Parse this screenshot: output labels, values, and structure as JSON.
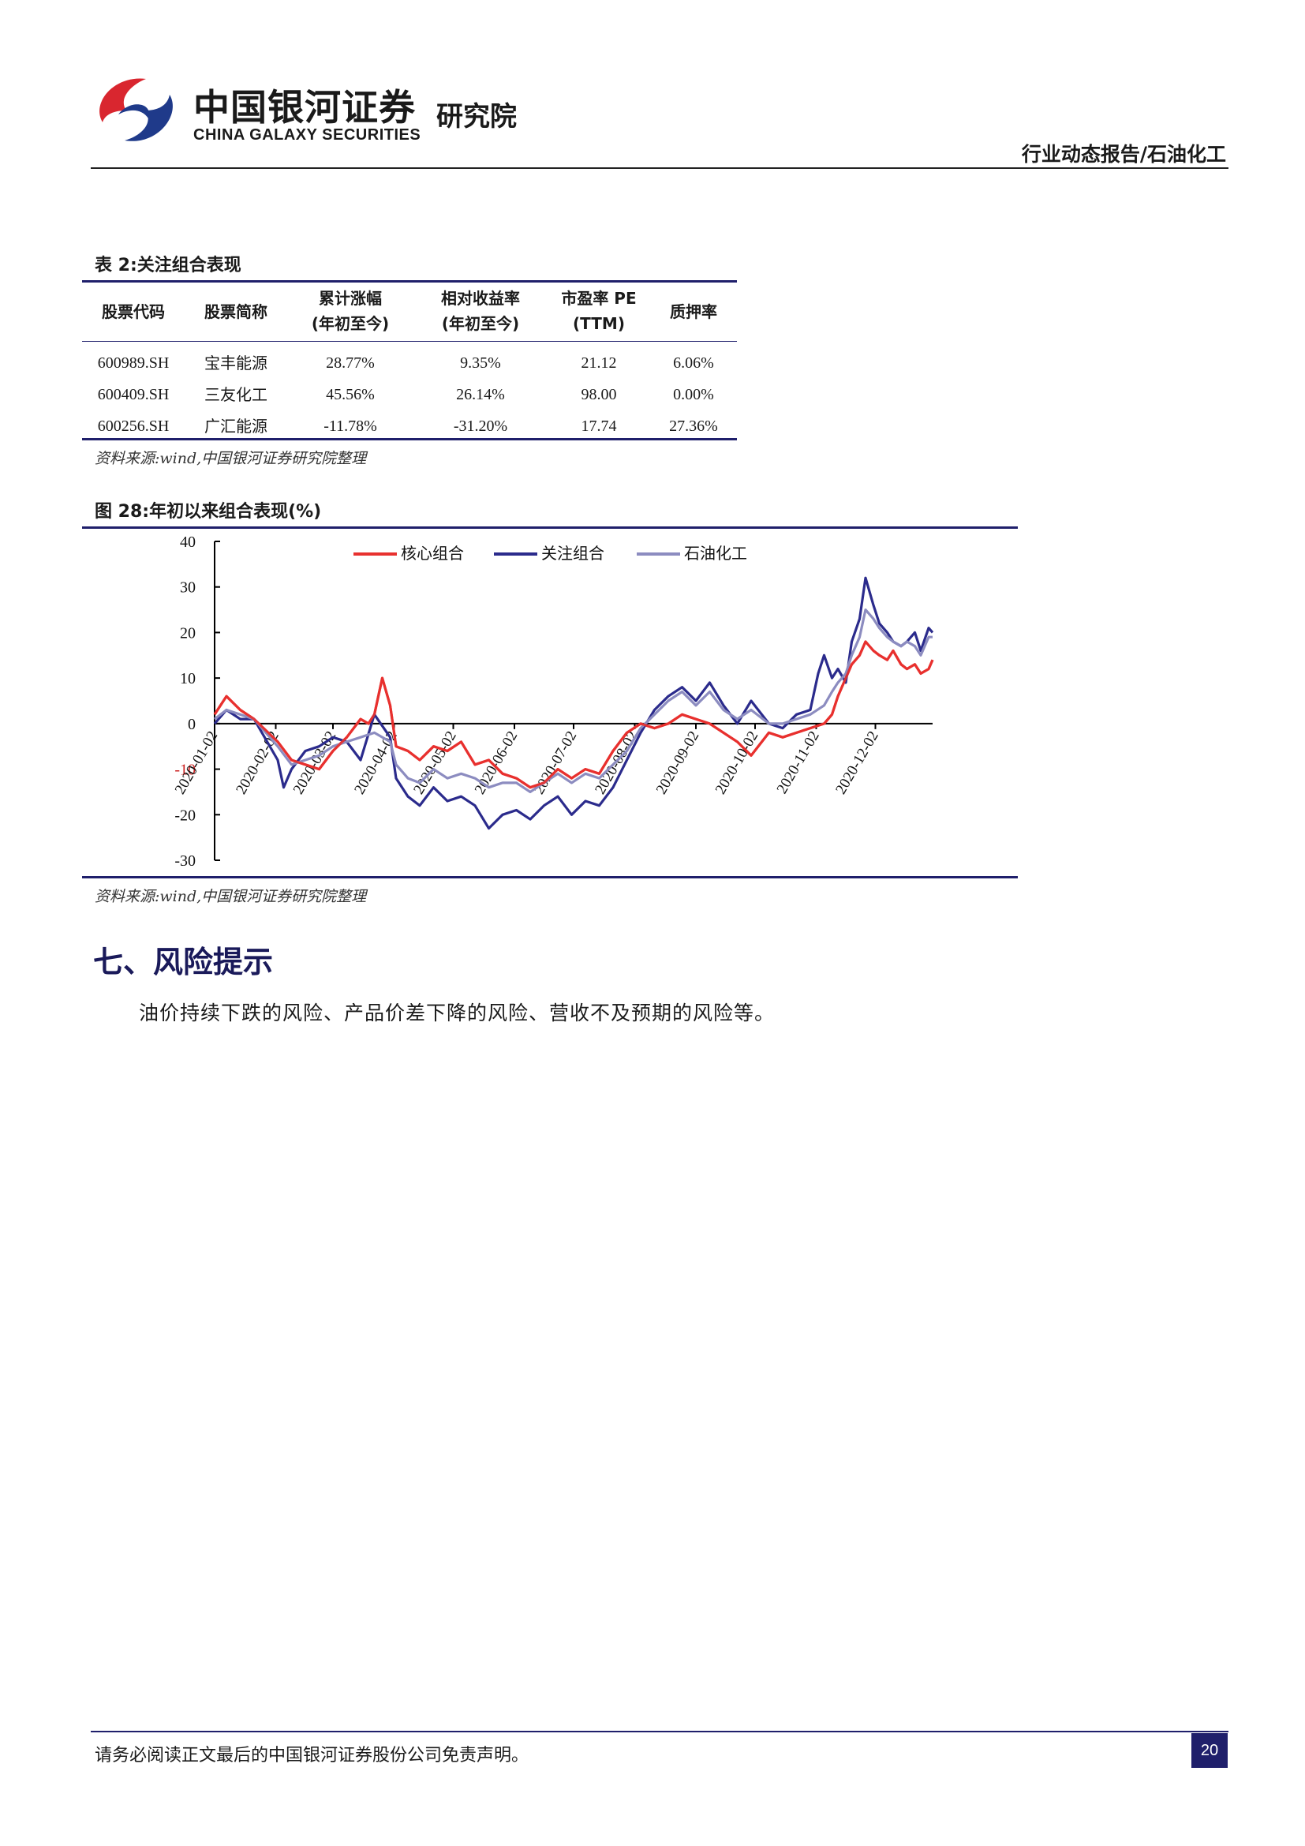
{
  "header": {
    "logo_cn": "中国银河证券",
    "logo_en": "CHINA GALAXY SECURITIES",
    "institute": "研究院",
    "report_type": "行业动态报告/石油化工",
    "brand_colors": {
      "red": "#d9262f",
      "navy": "#1f3a8a"
    }
  },
  "table2": {
    "caption": "表 2:关注组合表现",
    "columns": [
      {
        "line1": "股票代码",
        "line2": ""
      },
      {
        "line1": "股票简称",
        "line2": ""
      },
      {
        "line1": "累计涨幅",
        "line2": "(年初至今)"
      },
      {
        "line1": "相对收益率",
        "line2": "(年初至今)"
      },
      {
        "line1": "市盈率 PE",
        "line2": "(TTM)"
      },
      {
        "line1": "质押率",
        "line2": ""
      }
    ],
    "rows": [
      [
        "600989.SH",
        "宝丰能源",
        "28.77%",
        "9.35%",
        "21.12",
        "6.06%"
      ],
      [
        "600409.SH",
        "三友化工",
        "45.56%",
        "26.14%",
        "98.00",
        "0.00%"
      ],
      [
        "600256.SH",
        "广汇能源",
        "-11.78%",
        "-31.20%",
        "17.74",
        "27.36%"
      ]
    ],
    "source": "资料来源:wind,中国银河证券研究院整理"
  },
  "figure28": {
    "caption": "图 28:年初以来组合表现(%)",
    "source": "资料来源:wind,中国银河证券研究院整理"
  },
  "chart_data": {
    "type": "line",
    "title": "",
    "xlabel": "",
    "ylabel": "",
    "ylim": [
      -30,
      40
    ],
    "yticks": [
      40,
      30,
      20,
      10,
      0,
      -10,
      -20,
      -30
    ],
    "xlim": [
      "2020-01-02",
      "2020-12-31"
    ],
    "xtick_labels": [
      "2020-01-02",
      "2020-02-02",
      "2020-03-02",
      "2020-04-02",
      "2020-05-02",
      "2020-06-02",
      "2020-07-02",
      "2020-08-02",
      "2020-09-02",
      "2020-10-02",
      "2020-11-02",
      "2020-12-02"
    ],
    "grid": false,
    "legend": "top-center",
    "series": [
      {
        "name": "核心组合",
        "color": "#e8312f",
        "points": [
          [
            "2020-01-02",
            2
          ],
          [
            "2020-01-08",
            6
          ],
          [
            "2020-01-15",
            3
          ],
          [
            "2020-01-22",
            1
          ],
          [
            "2020-02-03",
            -4
          ],
          [
            "2020-02-10",
            -8
          ],
          [
            "2020-02-17",
            -9
          ],
          [
            "2020-02-24",
            -10
          ],
          [
            "2020-03-02",
            -6
          ],
          [
            "2020-03-09",
            -3
          ],
          [
            "2020-03-16",
            1
          ],
          [
            "2020-03-20",
            0
          ],
          [
            "2020-03-23",
            2
          ],
          [
            "2020-03-27",
            10
          ],
          [
            "2020-03-31",
            4
          ],
          [
            "2020-04-03",
            -5
          ],
          [
            "2020-04-09",
            -6
          ],
          [
            "2020-04-15",
            -8
          ],
          [
            "2020-04-22",
            -5
          ],
          [
            "2020-04-29",
            -6
          ],
          [
            "2020-05-06",
            -4
          ],
          [
            "2020-05-13",
            -9
          ],
          [
            "2020-05-20",
            -8
          ],
          [
            "2020-05-27",
            -11
          ],
          [
            "2020-06-03",
            -12
          ],
          [
            "2020-06-10",
            -14
          ],
          [
            "2020-06-17",
            -13
          ],
          [
            "2020-06-24",
            -10
          ],
          [
            "2020-07-01",
            -12
          ],
          [
            "2020-07-08",
            -10
          ],
          [
            "2020-07-15",
            -11
          ],
          [
            "2020-07-22",
            -6
          ],
          [
            "2020-07-29",
            -2
          ],
          [
            "2020-08-05",
            0
          ],
          [
            "2020-08-12",
            -1
          ],
          [
            "2020-08-19",
            0
          ],
          [
            "2020-08-26",
            2
          ],
          [
            "2020-09-02",
            1
          ],
          [
            "2020-09-09",
            0
          ],
          [
            "2020-09-16",
            -2
          ],
          [
            "2020-09-23",
            -4
          ],
          [
            "2020-09-30",
            -7
          ],
          [
            "2020-10-09",
            -2
          ],
          [
            "2020-10-16",
            -3
          ],
          [
            "2020-10-23",
            -2
          ],
          [
            "2020-10-30",
            -1
          ],
          [
            "2020-11-06",
            0
          ],
          [
            "2020-11-10",
            2
          ],
          [
            "2020-11-13",
            6
          ],
          [
            "2020-11-17",
            10
          ],
          [
            "2020-11-20",
            13
          ],
          [
            "2020-11-24",
            15
          ],
          [
            "2020-11-27",
            18
          ],
          [
            "2020-12-01",
            16
          ],
          [
            "2020-12-04",
            15
          ],
          [
            "2020-12-08",
            14
          ],
          [
            "2020-12-11",
            16
          ],
          [
            "2020-12-15",
            13
          ],
          [
            "2020-12-18",
            12
          ],
          [
            "2020-12-22",
            13
          ],
          [
            "2020-12-25",
            11
          ],
          [
            "2020-12-29",
            12
          ],
          [
            "2020-12-31",
            14
          ]
        ]
      },
      {
        "name": "关注组合",
        "color": "#2b2b8c",
        "points": [
          [
            "2020-01-02",
            0
          ],
          [
            "2020-01-08",
            3
          ],
          [
            "2020-01-15",
            1
          ],
          [
            "2020-01-22",
            1
          ],
          [
            "2020-02-03",
            -8
          ],
          [
            "2020-02-06",
            -14
          ],
          [
            "2020-02-10",
            -10
          ],
          [
            "2020-02-17",
            -6
          ],
          [
            "2020-02-24",
            -5
          ],
          [
            "2020-03-02",
            -3
          ],
          [
            "2020-03-09",
            -4
          ],
          [
            "2020-03-16",
            -8
          ],
          [
            "2020-03-23",
            2
          ],
          [
            "2020-03-31",
            -3
          ],
          [
            "2020-04-03",
            -12
          ],
          [
            "2020-04-09",
            -16
          ],
          [
            "2020-04-15",
            -18
          ],
          [
            "2020-04-22",
            -14
          ],
          [
            "2020-04-29",
            -17
          ],
          [
            "2020-05-06",
            -16
          ],
          [
            "2020-05-13",
            -18
          ],
          [
            "2020-05-20",
            -23
          ],
          [
            "2020-05-27",
            -20
          ],
          [
            "2020-06-03",
            -19
          ],
          [
            "2020-06-10",
            -21
          ],
          [
            "2020-06-17",
            -18
          ],
          [
            "2020-06-24",
            -16
          ],
          [
            "2020-07-01",
            -20
          ],
          [
            "2020-07-08",
            -17
          ],
          [
            "2020-07-15",
            -18
          ],
          [
            "2020-07-22",
            -14
          ],
          [
            "2020-07-29",
            -8
          ],
          [
            "2020-08-05",
            -2
          ],
          [
            "2020-08-12",
            3
          ],
          [
            "2020-08-19",
            6
          ],
          [
            "2020-08-26",
            8
          ],
          [
            "2020-09-02",
            5
          ],
          [
            "2020-09-09",
            9
          ],
          [
            "2020-09-16",
            4
          ],
          [
            "2020-09-23",
            0
          ],
          [
            "2020-09-30",
            5
          ],
          [
            "2020-10-09",
            0
          ],
          [
            "2020-10-16",
            -1
          ],
          [
            "2020-10-23",
            2
          ],
          [
            "2020-10-30",
            3
          ],
          [
            "2020-11-03",
            11
          ],
          [
            "2020-11-06",
            15
          ],
          [
            "2020-11-10",
            10
          ],
          [
            "2020-11-13",
            12
          ],
          [
            "2020-11-17",
            9
          ],
          [
            "2020-11-20",
            18
          ],
          [
            "2020-11-24",
            23
          ],
          [
            "2020-11-27",
            32
          ],
          [
            "2020-12-01",
            26
          ],
          [
            "2020-12-04",
            22
          ],
          [
            "2020-12-08",
            20
          ],
          [
            "2020-12-11",
            18
          ],
          [
            "2020-12-15",
            17
          ],
          [
            "2020-12-18",
            18
          ],
          [
            "2020-12-22",
            20
          ],
          [
            "2020-12-25",
            16
          ],
          [
            "2020-12-29",
            21
          ],
          [
            "2020-12-31",
            20
          ]
        ]
      },
      {
        "name": "石油化工",
        "color": "#8c8cc0",
        "points": [
          [
            "2020-01-02",
            1
          ],
          [
            "2020-01-08",
            3
          ],
          [
            "2020-01-15",
            2
          ],
          [
            "2020-01-22",
            1
          ],
          [
            "2020-02-03",
            -5
          ],
          [
            "2020-02-10",
            -9
          ],
          [
            "2020-02-17",
            -8
          ],
          [
            "2020-02-24",
            -7
          ],
          [
            "2020-03-02",
            -5
          ],
          [
            "2020-03-09",
            -4
          ],
          [
            "2020-03-16",
            -3
          ],
          [
            "2020-03-23",
            -2
          ],
          [
            "2020-03-31",
            -4
          ],
          [
            "2020-04-03",
            -9
          ],
          [
            "2020-04-09",
            -12
          ],
          [
            "2020-04-15",
            -13
          ],
          [
            "2020-04-22",
            -10
          ],
          [
            "2020-04-29",
            -12
          ],
          [
            "2020-05-06",
            -11
          ],
          [
            "2020-05-13",
            -12
          ],
          [
            "2020-05-20",
            -14
          ],
          [
            "2020-05-27",
            -13
          ],
          [
            "2020-06-03",
            -13
          ],
          [
            "2020-06-10",
            -15
          ],
          [
            "2020-06-17",
            -13
          ],
          [
            "2020-06-24",
            -11
          ],
          [
            "2020-07-01",
            -13
          ],
          [
            "2020-07-08",
            -11
          ],
          [
            "2020-07-15",
            -12
          ],
          [
            "2020-07-22",
            -9
          ],
          [
            "2020-07-29",
            -6
          ],
          [
            "2020-08-05",
            -1
          ],
          [
            "2020-08-12",
            2
          ],
          [
            "2020-08-19",
            5
          ],
          [
            "2020-08-26",
            7
          ],
          [
            "2020-09-02",
            4
          ],
          [
            "2020-09-09",
            7
          ],
          [
            "2020-09-16",
            3
          ],
          [
            "2020-09-23",
            1
          ],
          [
            "2020-09-30",
            3
          ],
          [
            "2020-10-09",
            0
          ],
          [
            "2020-10-16",
            0
          ],
          [
            "2020-10-23",
            1
          ],
          [
            "2020-10-30",
            2
          ],
          [
            "2020-11-06",
            4
          ],
          [
            "2020-11-10",
            7
          ],
          [
            "2020-11-13",
            9
          ],
          [
            "2020-11-17",
            11
          ],
          [
            "2020-11-20",
            15
          ],
          [
            "2020-11-24",
            19
          ],
          [
            "2020-11-27",
            25
          ],
          [
            "2020-12-01",
            23
          ],
          [
            "2020-12-04",
            21
          ],
          [
            "2020-12-08",
            19
          ],
          [
            "2020-12-11",
            18
          ],
          [
            "2020-12-15",
            17
          ],
          [
            "2020-12-18",
            18
          ],
          [
            "2020-12-22",
            17
          ],
          [
            "2020-12-25",
            15
          ],
          [
            "2020-12-29",
            19
          ],
          [
            "2020-12-31",
            19
          ]
        ]
      }
    ]
  },
  "section7": {
    "title": "七、风险提示",
    "body": "油价持续下跌的风险、产品价差下降的风险、营收不及预期的风险等。"
  },
  "footer": {
    "disclaimer": "请务必阅读正文最后的中国银河证券股份公司免责声明。",
    "page_number": "20"
  }
}
